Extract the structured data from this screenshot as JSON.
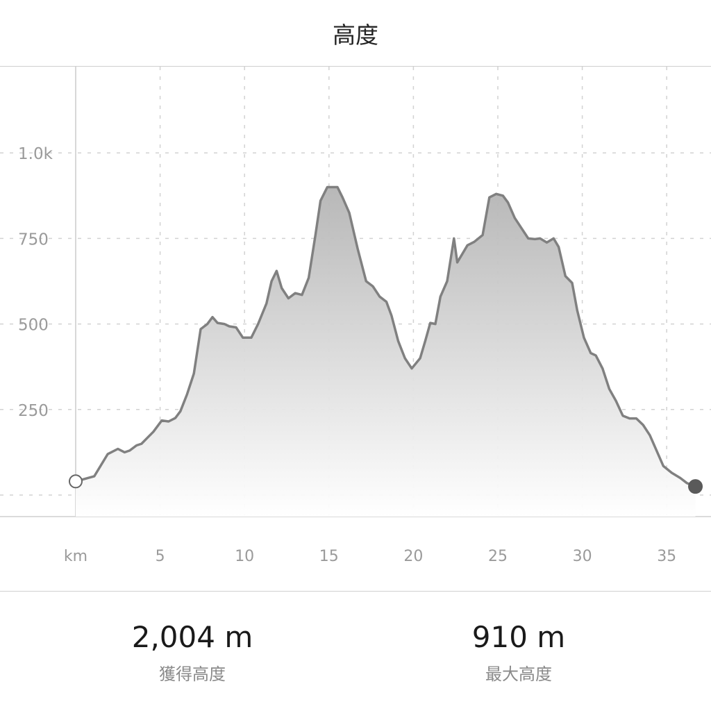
{
  "header": {
    "title": "高度"
  },
  "chart_data": {
    "type": "area",
    "title": "",
    "xlabel": "km",
    "ylabel": "",
    "xlim": [
      0,
      37
    ],
    "ylim": [
      -60,
      1250
    ],
    "grid": true,
    "x_ticks": [
      {
        "value": 0,
        "label": "km"
      },
      {
        "value": 5,
        "label": "5"
      },
      {
        "value": 10,
        "label": "10"
      },
      {
        "value": 15,
        "label": "15"
      },
      {
        "value": 20,
        "label": "20"
      },
      {
        "value": 25,
        "label": "25"
      },
      {
        "value": 30,
        "label": "30"
      },
      {
        "value": 35,
        "label": "35"
      }
    ],
    "y_ticks": [
      {
        "value": 0,
        "label": ""
      },
      {
        "value": 250,
        "label": "250"
      },
      {
        "value": 500,
        "label": "500"
      },
      {
        "value": 750,
        "label": "750"
      },
      {
        "value": 1000,
        "label": "1.0k"
      }
    ],
    "series": [
      {
        "color": "#808080",
        "x": [
          0,
          1.1,
          1.9,
          2.5,
          2.9,
          3.2,
          3.6,
          3.9,
          4.2,
          4.6,
          5.1,
          5.5,
          5.9,
          6.2,
          6.6,
          7.0,
          7.4,
          7.8,
          8.1,
          8.4,
          8.8,
          9.1,
          9.5,
          9.9,
          10.4,
          10.8,
          11.3,
          11.6,
          11.9,
          12.2,
          12.6,
          13.0,
          13.4,
          13.8,
          14.2,
          14.5,
          14.9,
          15.5,
          15.8,
          16.2,
          16.7,
          17.2,
          17.6,
          18.0,
          18.4,
          18.7,
          19.1,
          19.5,
          19.9,
          20.4,
          20.7,
          21.0,
          21.3,
          21.6,
          22.0,
          22.4,
          22.6,
          22.9,
          23.2,
          23.6,
          24.1,
          24.5,
          24.9,
          25.3,
          25.6,
          26.0,
          26.4,
          26.8,
          27.2,
          27.5,
          27.9,
          28.3,
          28.6,
          29.0,
          29.4,
          29.7,
          30.1,
          30.5,
          30.8,
          31.2,
          31.6,
          32.0,
          32.4,
          32.8,
          33.2,
          33.6,
          34.0,
          34.4,
          34.8,
          35.3,
          35.8,
          36.2,
          36.7
        ],
        "values": [
          40,
          55,
          120,
          135,
          125,
          130,
          145,
          150,
          165,
          185,
          218,
          215,
          225,
          245,
          295,
          355,
          485,
          500,
          520,
          503,
          500,
          493,
          490,
          460,
          460,
          500,
          560,
          625,
          655,
          605,
          575,
          590,
          585,
          635,
          760,
          860,
          900,
          900,
          870,
          825,
          720,
          625,
          610,
          580,
          565,
          525,
          450,
          400,
          370,
          400,
          450,
          503,
          500,
          580,
          625,
          750,
          680,
          705,
          730,
          740,
          760,
          870,
          880,
          875,
          855,
          810,
          780,
          750,
          748,
          750,
          738,
          750,
          725,
          640,
          620,
          540,
          460,
          415,
          408,
          370,
          310,
          275,
          232,
          224,
          224,
          205,
          175,
          130,
          85,
          65,
          50,
          35,
          25
        ]
      }
    ]
  },
  "stats": {
    "gain": {
      "value": "2,004 m",
      "label": "獲得高度"
    },
    "max": {
      "value": "910 m",
      "label": "最大高度"
    }
  }
}
